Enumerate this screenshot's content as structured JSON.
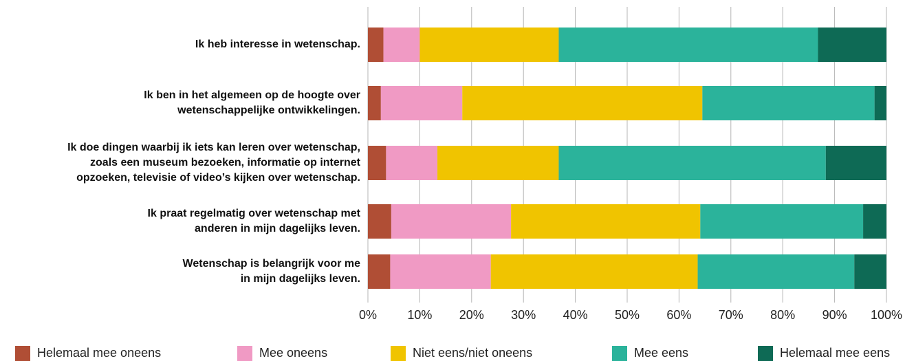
{
  "chart_data": {
    "type": "bar",
    "orientation": "horizontal",
    "stacked": true,
    "categories": [
      "Ik heb interesse in wetenschap.",
      "Ik ben in het algemeen op de hoogte over\nwetenschappelijke ontwikkelingen.",
      "Ik doe dingen waarbij ik iets kan leren over wetenschap,\nzoals een museum bezoeken, informatie op internet\nopzoeken, televisie of video’s kijken over wetenschap.",
      "Ik praat regelmatig over wetenschap met\nanderen in mijn dagelijks leven.",
      "Wetenschap is belangrijk voor me\nin mijn dagelijks leven."
    ],
    "series": [
      {
        "name": "Helemaal mee oneens",
        "color": "#b04e35",
        "values": [
          3,
          2.5,
          3.5,
          4.5,
          4.3
        ]
      },
      {
        "name": "Mee oneens",
        "color": "#f09ac4",
        "values": [
          7,
          15.7,
          9.9,
          23.1,
          19.4
        ]
      },
      {
        "name": "Niet eens/niet oneens",
        "color": "#f0c400",
        "values": [
          26.8,
          46.3,
          23.4,
          36.5,
          39.9
        ]
      },
      {
        "name": "Mee eens",
        "color": "#2bb39b",
        "values": [
          50,
          33.2,
          51.5,
          31.4,
          30.2
        ]
      },
      {
        "name": "Helemaal mee eens",
        "color": "#0e6a55",
        "values": [
          13.2,
          2.3,
          11.7,
          4.5,
          6.2
        ]
      }
    ],
    "x_ticks": [
      "0%",
      "10%",
      "20%",
      "30%",
      "40%",
      "50%",
      "60%",
      "70%",
      "80%",
      "90%",
      "100%"
    ],
    "xlim": [
      0,
      100
    ],
    "grid": true,
    "legend_position": "bottom"
  }
}
